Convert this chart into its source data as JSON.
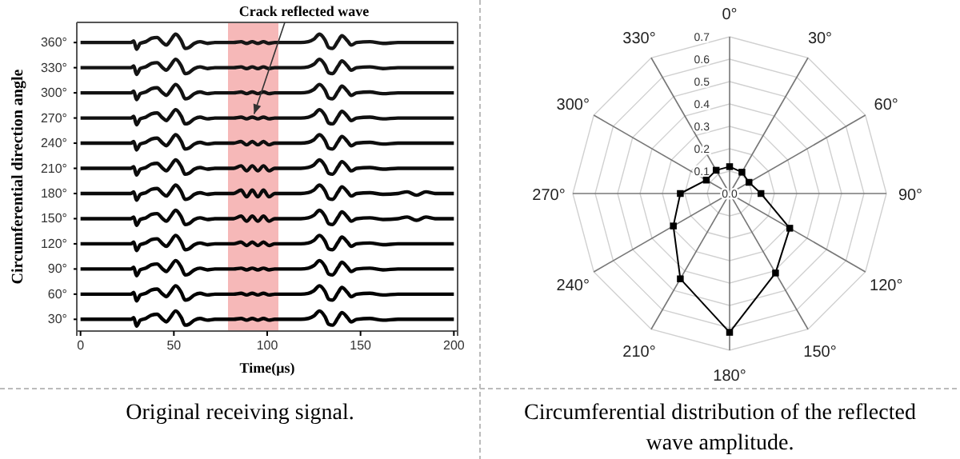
{
  "chart_data": [
    {
      "type": "line",
      "xlabel": "Time(μs)",
      "ylabel": "Circumferential direction angle",
      "annotations": [
        {
          "text": "Crack reflected wave",
          "x": 93,
          "y": 271
        },
        "Original receiving signal."
      ],
      "x": [
        0,
        10,
        20,
        27,
        28.5,
        30,
        32,
        35,
        38,
        41,
        44,
        46,
        48,
        51,
        54,
        56,
        58,
        61,
        64,
        68,
        72,
        78,
        82,
        86,
        89,
        92,
        95,
        98,
        101,
        104,
        110,
        118,
        122,
        125,
        128,
        131,
        133,
        135,
        138,
        140,
        143,
        145,
        148,
        155,
        162,
        170,
        175,
        180,
        185,
        190,
        200
      ],
      "xlim": [
        -2,
        202
      ],
      "xticks": [
        0,
        50,
        100,
        150,
        200
      ],
      "ylim": [
        16,
        384
      ],
      "yticks": [
        {
          "value": 30,
          "label": "30°"
        },
        {
          "value": 60,
          "label": "60°"
        },
        {
          "value": 90,
          "label": "90°"
        },
        {
          "value": 120,
          "label": "120°"
        },
        {
          "value": 150,
          "label": "150°"
        },
        {
          "value": 180,
          "label": "180°"
        },
        {
          "value": 210,
          "label": "210°"
        },
        {
          "value": 240,
          "label": "240°"
        },
        {
          "value": 270,
          "label": "270°"
        },
        {
          "value": 300,
          "label": "300°"
        },
        {
          "value": 330,
          "label": "330°"
        },
        {
          "value": 360,
          "label": "360°"
        }
      ],
      "bands": [
        {
          "axis": "x",
          "from": 79,
          "to": 106,
          "color": "#f4a6a6"
        }
      ],
      "marker": "none",
      "grid": false,
      "series": [
        {
          "color": "#000000",
          "values": [
            30,
            30,
            30,
            30,
            32,
            22,
            29,
            31,
            35,
            36,
            30,
            27,
            32,
            40,
            32,
            23,
            24,
            29,
            31,
            29,
            30,
            30,
            30,
            31,
            29,
            31,
            29,
            31,
            29,
            30,
            30,
            30,
            31,
            34,
            40,
            33,
            24,
            23,
            32,
            38,
            32,
            27,
            30,
            31,
            29,
            30,
            30,
            30,
            30,
            30,
            30
          ]
        },
        {
          "color": "#020202",
          "values": [
            60,
            60,
            60,
            60,
            62,
            52,
            59,
            61,
            65,
            66,
            60,
            57,
            62,
            70,
            62,
            53,
            54,
            59,
            61,
            59,
            60,
            60,
            60,
            61,
            59,
            61,
            59,
            61,
            59,
            60,
            60,
            60,
            61,
            64,
            70,
            63,
            54,
            53,
            62,
            68,
            62,
            57,
            60,
            61,
            59,
            60,
            60,
            60,
            60,
            60,
            60
          ]
        },
        {
          "color": "#040404",
          "values": [
            90,
            90,
            90,
            90,
            92,
            82,
            89,
            91,
            95,
            96,
            90,
            87,
            92,
            100,
            92,
            83,
            84,
            89,
            91,
            89,
            90,
            90,
            90,
            91,
            89,
            91,
            89,
            91,
            89,
            90,
            90,
            90,
            91,
            94,
            100,
            93,
            84,
            83,
            92,
            98,
            92,
            87,
            90,
            91,
            89,
            90,
            90,
            90,
            90,
            90,
            90
          ]
        },
        {
          "color": "#060606",
          "values": [
            120,
            120,
            120,
            120,
            122,
            112,
            119,
            121,
            125,
            126,
            120,
            117,
            122,
            130,
            122,
            113,
            114,
            119,
            121,
            119,
            120,
            120,
            120,
            122,
            118,
            122,
            118,
            122,
            118,
            120,
            120,
            120,
            121,
            124,
            130,
            123,
            114,
            113,
            122,
            128,
            122,
            117,
            120,
            121,
            119,
            120,
            120,
            120,
            120,
            120,
            120
          ]
        },
        {
          "color": "#080808",
          "values": [
            150,
            150,
            150,
            150,
            152,
            142,
            149,
            151,
            155,
            156,
            150,
            147,
            152,
            160,
            152,
            143,
            144,
            149,
            151,
            149,
            150,
            150,
            150,
            153,
            147,
            153,
            147,
            153,
            147,
            150,
            150,
            150,
            151,
            154,
            160,
            153,
            144,
            143,
            152,
            158,
            152,
            147,
            150,
            151,
            149,
            150,
            152,
            148,
            152,
            150,
            150
          ]
        },
        {
          "color": "#0a0a0a",
          "values": [
            180,
            180,
            180,
            180,
            182,
            172,
            179,
            181,
            185,
            186,
            180,
            177,
            182,
            190,
            182,
            173,
            174,
            179,
            181,
            179,
            180,
            180,
            180,
            184,
            176,
            184,
            176,
            184,
            176,
            180,
            180,
            180,
            181,
            184,
            190,
            183,
            174,
            173,
            182,
            188,
            182,
            177,
            180,
            181,
            179,
            180,
            182,
            178,
            182,
            180,
            180
          ]
        },
        {
          "color": "#0c0c0c",
          "values": [
            210,
            210,
            210,
            210,
            212,
            202,
            209,
            211,
            215,
            216,
            210,
            207,
            212,
            220,
            212,
            203,
            204,
            209,
            211,
            209,
            210,
            210,
            210,
            213,
            207,
            213,
            207,
            213,
            207,
            210,
            210,
            210,
            211,
            214,
            220,
            213,
            204,
            203,
            212,
            218,
            212,
            207,
            210,
            211,
            209,
            210,
            210,
            210,
            210,
            210,
            210
          ]
        },
        {
          "color": "#0e0e0e",
          "values": [
            240,
            240,
            240,
            240,
            242,
            232,
            239,
            241,
            245,
            246,
            240,
            237,
            242,
            250,
            242,
            233,
            234,
            239,
            241,
            239,
            240,
            240,
            240,
            242,
            238,
            242,
            238,
            242,
            238,
            240,
            240,
            240,
            241,
            244,
            250,
            243,
            234,
            233,
            242,
            248,
            242,
            237,
            240,
            241,
            239,
            240,
            240,
            240,
            240,
            240,
            240
          ]
        },
        {
          "color": "#101010",
          "values": [
            270,
            270,
            270,
            270,
            272,
            262,
            269,
            271,
            275,
            276,
            270,
            267,
            272,
            280,
            272,
            263,
            264,
            269,
            271,
            269,
            270,
            270,
            270,
            271,
            269,
            271,
            269,
            271,
            269,
            270,
            270,
            270,
            271,
            274,
            280,
            273,
            264,
            263,
            272,
            278,
            272,
            267,
            270,
            271,
            269,
            270,
            270,
            270,
            270,
            270,
            270
          ]
        },
        {
          "color": "#121212",
          "values": [
            300,
            300,
            300,
            300,
            302,
            292,
            299,
            301,
            305,
            306,
            300,
            297,
            302,
            310,
            302,
            293,
            294,
            299,
            301,
            299,
            300,
            300,
            300,
            301,
            299,
            301,
            299,
            301,
            299,
            300,
            300,
            300,
            301,
            304,
            310,
            303,
            294,
            293,
            302,
            308,
            302,
            297,
            300,
            301,
            299,
            300,
            300,
            300,
            300,
            300,
            300
          ]
        },
        {
          "color": "#141414",
          "values": [
            330,
            330,
            330,
            330,
            332,
            322,
            329,
            331,
            335,
            336,
            330,
            327,
            332,
            340,
            332,
            323,
            324,
            329,
            331,
            329,
            330,
            330,
            330,
            331,
            329,
            331,
            329,
            331,
            329,
            330,
            330,
            330,
            331,
            334,
            340,
            333,
            324,
            323,
            332,
            338,
            332,
            327,
            330,
            331,
            329,
            330,
            330,
            330,
            330,
            330,
            330
          ]
        },
        {
          "color": "#161616",
          "values": [
            360,
            360,
            360,
            360,
            362,
            352,
            359,
            361,
            365,
            366,
            360,
            357,
            362,
            370,
            362,
            353,
            354,
            359,
            361,
            359,
            360,
            360,
            360,
            361,
            359,
            361,
            359,
            361,
            359,
            360,
            360,
            360,
            361,
            364,
            370,
            363,
            354,
            353,
            362,
            368,
            362,
            357,
            360,
            361,
            359,
            360,
            360,
            360,
            360,
            360,
            360
          ]
        }
      ]
    },
    {
      "type": "radar",
      "categories": [
        "0°",
        "30°",
        "60°",
        "90°",
        "120°",
        "150°",
        "180°",
        "210°",
        "240°",
        "270°",
        "300°",
        "330°"
      ],
      "ylim": [
        0,
        0.7
      ],
      "yticks": [
        {
          "value": 0,
          "label": "0.0"
        },
        0.1,
        0.2,
        0.3,
        0.4,
        0.5,
        0.6,
        0.7
      ],
      "grid": true,
      "marker": "square",
      "annotations": [
        "Circumferential distribution of the reflected wave amplitude."
      ],
      "series": [
        {
          "color": "#000000",
          "values": [
            0.12,
            0.11,
            0.1,
            0.14,
            0.31,
            0.41,
            0.62,
            0.44,
            0.29,
            0.22,
            0.12,
            0.12
          ]
        }
      ]
    }
  ]
}
